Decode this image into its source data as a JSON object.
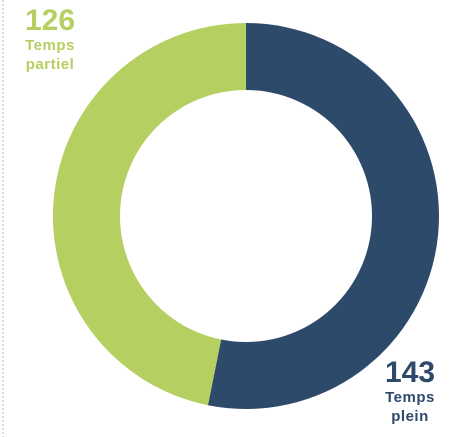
{
  "chart_data": {
    "type": "donut",
    "categories": [
      "Temps plein",
      "Temps partiel"
    ],
    "values": [
      143,
      126
    ],
    "colors": [
      "#2e4a6b",
      "#b5cf60"
    ]
  }
}
